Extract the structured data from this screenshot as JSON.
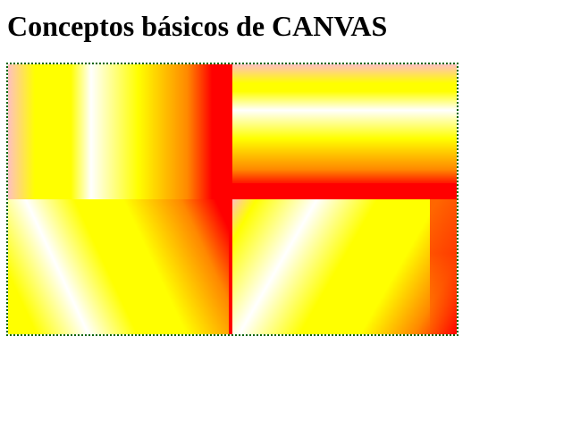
{
  "page": {
    "heading": "Conceptos básicos de CANVAS"
  },
  "canvas": {
    "border_color": "#006400",
    "gradient_colors": [
      "#ffc0c0",
      "#ffff00",
      "#ffffff",
      "#ff8800",
      "#ff0000"
    ]
  }
}
